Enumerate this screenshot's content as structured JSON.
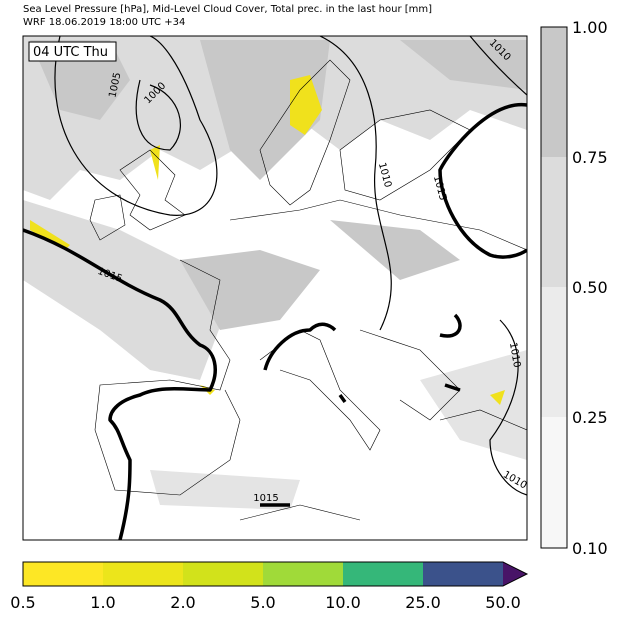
{
  "header": {
    "title_line1": "Sea Level Pressure [hPa], Mid-Level Cloud Cover, Total prec. in the last hour [mm]",
    "title_line2": "WRF 18.06.2019 18:00 UTC +34"
  },
  "map": {
    "time_label": "04 UTC Thu",
    "isobar_labels": [
      "1005",
      "1000",
      "1010",
      "1010",
      "1015",
      "1015",
      "1010",
      "1010",
      "1015"
    ]
  },
  "cloud_colorbar": {
    "ticks": [
      "1.00",
      "0.75",
      "0.50",
      "0.25",
      "0.10"
    ]
  },
  "precip_colorbar": {
    "ticks": [
      "0.5",
      "1.0",
      "2.0",
      "5.0",
      "10.0",
      "25.0",
      "50.0"
    ]
  }
}
